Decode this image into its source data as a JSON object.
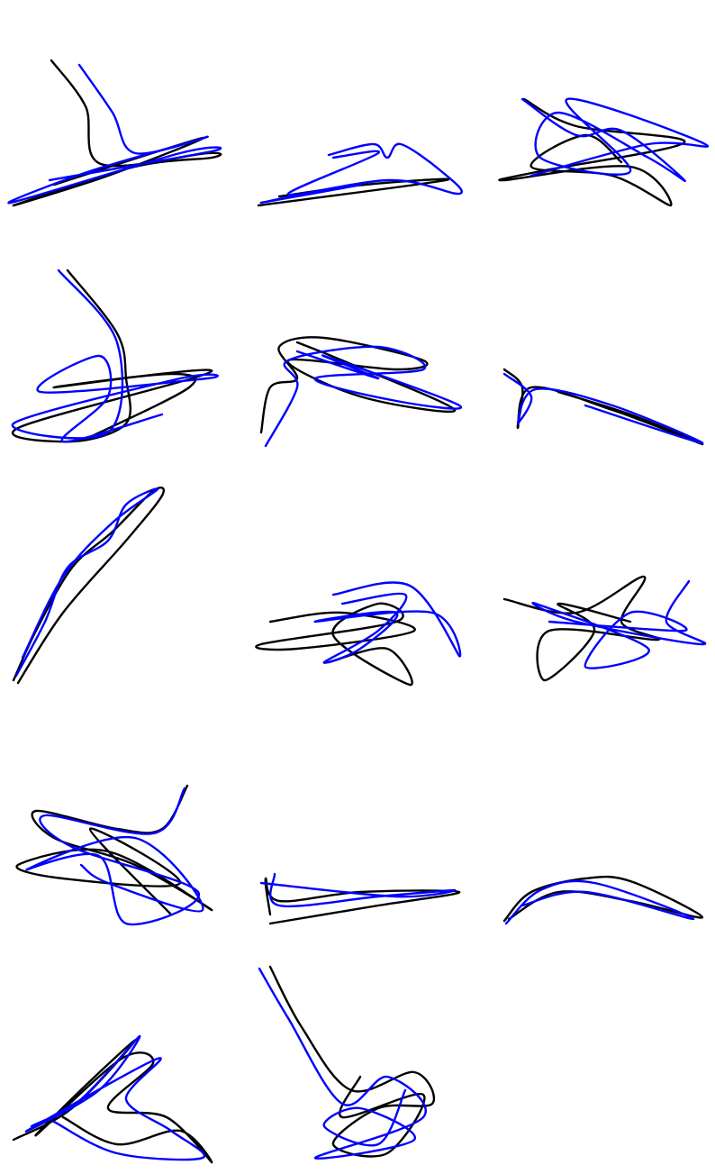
{
  "chart_data": [
    {
      "type": "line",
      "series": [
        {
          "color": "#000000",
          "x": [
            47,
            85,
            102,
            220,
            225,
            140,
            5,
            110,
            215,
            50
          ],
          "values": [
            173,
            122,
            58,
            70,
            65,
            55,
            12,
            45,
            87,
            35
          ]
        },
        {
          "color": "#0000ff",
          "x": [
            78,
            115,
            140,
            220,
            90,
            2,
            190,
            225,
            45
          ],
          "values": [
            168,
            115,
            70,
            88,
            50,
            15,
            70,
            72,
            40
          ]
        }
      ]
    },
    {
      "type": "line",
      "series": [
        {
          "color": "#000000",
          "x": [
            2,
            210,
            120,
            25
          ],
          "values": [
            12,
            40,
            35,
            22
          ]
        },
        {
          "color": "#0000ff",
          "x": [
            80,
            130,
            145,
            160,
            205,
            225,
            145,
            5,
            115,
            35,
            135,
            85
          ],
          "values": [
            68,
            80,
            65,
            80,
            50,
            25,
            40,
            15,
            35,
            25,
            70,
            65
          ]
        }
      ]
    },
    {
      "type": "line",
      "series": [
        {
          "color": "#000000",
          "x": [
            24,
            82,
            202,
            42,
            2,
            142,
            187,
            122,
            32,
            92,
            132
          ],
          "values": [
            130,
            100,
            82,
            50,
            40,
            55,
            12,
            45,
            55,
            90,
            60
          ]
        },
        {
          "color": "#0000ff",
          "x": [
            22,
            82,
            132,
            202,
            162,
            62,
            42,
            142,
            72,
            225,
            162,
            32
          ],
          "values": [
            130,
            90,
            95,
            40,
            65,
            115,
            65,
            50,
            130,
            80,
            80,
            45
          ]
        }
      ]
    },
    {
      "type": "line",
      "series": [
        {
          "color": "#000000",
          "x": [
            65,
            120,
            130,
            130,
            70,
            10,
            225,
            50,
            180,
            200,
            90
          ],
          "values": [
            200,
            130,
            80,
            30,
            10,
            25,
            88,
            70,
            85,
            70,
            15
          ]
        },
        {
          "color": "#0000ff",
          "x": [
            55,
            120,
            110,
            5,
            190,
            220,
            35,
            100,
            110,
            60,
            170
          ],
          "values": [
            200,
            120,
            20,
            30,
            80,
            80,
            65,
            105,
            60,
            10,
            40
          ]
        }
      ]
    },
    {
      "type": "line",
      "series": [
        {
          "color": "#000000",
          "x": [
            5,
            15,
            45,
            25,
            75,
            185,
            155,
            35,
            115,
            220,
            95,
            45
          ],
          "values": [
            20,
            70,
            80,
            115,
            125,
            100,
            90,
            100,
            60,
            45,
            100,
            120
          ]
        },
        {
          "color": "#0000ff",
          "x": [
            10,
            45,
            35,
            135,
            185,
            65,
            155,
            225,
            75,
            135,
            45
          ],
          "values": [
            5,
            70,
            100,
            115,
            90,
            80,
            55,
            50,
            105,
            80,
            110
          ]
        }
      ]
    },
    {
      "type": "line",
      "series": [
        {
          "color": "#000000",
          "x": [
            2,
            22,
            17,
            32,
            122,
            222,
            142,
            62
          ],
          "values": [
            90,
            70,
            25,
            70,
            45,
            7,
            40,
            65
          ]
        },
        {
          "color": "#0000ff",
          "x": [
            2,
            32,
            17,
            37,
            122,
            222,
            92
          ],
          "values": [
            85,
            60,
            30,
            68,
            50,
            8,
            50
          ]
        }
      ]
    },
    {
      "type": "line",
      "series": [
        {
          "color": "#000000",
          "x": [
            10,
            60,
            130,
            170,
            160,
            115,
            70,
            30,
            5
          ],
          "values": [
            7,
            85,
            165,
            215,
            220,
            175,
            135,
            65,
            10
          ]
        },
        {
          "color": "#0000ff",
          "x": [
            8,
            40,
            65,
            110,
            130,
            165,
            115,
            60,
            15
          ],
          "values": [
            15,
            75,
            135,
            165,
            205,
            222,
            185,
            125,
            35
          ]
        }
      ]
    },
    {
      "type": "line",
      "series": [
        {
          "color": "#000000",
          "x": [
            15,
            95,
            175,
            45,
            5,
            155,
            135,
            85,
            170,
            145,
            80
          ],
          "values": [
            75,
            85,
            65,
            45,
            50,
            75,
            95,
            60,
            5,
            45,
            30
          ]
        },
        {
          "color": "#0000ff",
          "x": [
            85,
            170,
            225,
            195,
            65,
            155,
            115,
            75,
            135,
            165,
            95
          ],
          "values": [
            105,
            115,
            37,
            85,
            75,
            85,
            45,
            30,
            65,
            105,
            95
          ]
        }
      ]
    },
    {
      "type": "line",
      "series": [
        {
          "color": "#000000",
          "x": [
            2,
            82,
            157,
            132,
            172,
            52,
            47,
            102,
            62,
            142
          ],
          "values": [
            100,
            85,
            125,
            75,
            55,
            65,
            10,
            65,
            95,
            75
          ]
        },
        {
          "color": "#0000ff",
          "x": [
            207,
            182,
            222,
            82,
            37,
            162,
            92,
            142,
            202,
            52
          ],
          "values": [
            120,
            75,
            50,
            75,
            95,
            45,
            25,
            85,
            65,
            75
          ]
        }
      ]
    },
    {
      "type": "line",
      "series": [
        {
          "color": "#000000",
          "x": [
            198,
            170,
            120,
            30,
            50,
            140,
            225,
            110,
            10,
            60,
            190,
            90,
            180
          ],
          "values": [
            158,
            110,
            110,
            130,
            100,
            70,
            20,
            85,
            70,
            55,
            50,
            110,
            15
          ]
        },
        {
          "color": "#0000ff",
          "x": [
            195,
            160,
            40,
            70,
            210,
            130,
            100,
            20,
            140,
            215,
            110,
            80
          ],
          "values": [
            155,
            105,
            125,
            90,
            40,
            5,
            80,
            65,
            100,
            20,
            50,
            70
          ]
        }
      ]
    },
    {
      "type": "line",
      "series": [
        {
          "color": "#000000",
          "x": [
            15,
            10,
            25,
            115,
            225,
            135,
            15
          ],
          "values": [
            15,
            55,
            30,
            40,
            40,
            25,
            5
          ]
        },
        {
          "color": "#0000ff",
          "x": [
            20,
            25,
            135,
            220,
            155,
            5
          ],
          "values": [
            60,
            25,
            35,
            42,
            35,
            50
          ]
        }
      ]
    },
    {
      "type": "line",
      "series": [
        {
          "color": "#000000",
          "x": [
            2,
            32,
            92,
            142,
            222,
            142,
            62,
            7
          ],
          "values": [
            8,
            40,
            55,
            52,
            12,
            30,
            40,
            10
          ]
        },
        {
          "color": "#0000ff",
          "x": [
            4,
            42,
            102,
            212,
            92,
            22
          ],
          "values": [
            5,
            42,
            50,
            10,
            40,
            25
          ]
        }
      ]
    },
    {
      "type": "line",
      "series": [
        {
          "color": "#000000",
          "x": [
            5,
            70,
            140,
            90,
            30,
            125,
            160,
            110,
            175,
            225,
            190,
            120,
            60
          ],
          "values": [
            30,
            65,
            140,
            95,
            35,
            120,
            115,
            65,
            55,
            5,
            40,
            25,
            55
          ]
        },
        {
          "color": "#0000ff",
          "x": [
            25,
            80,
            145,
            100,
            20,
            165,
            130,
            180,
            215,
            120,
            50
          ],
          "values": [
            45,
            75,
            145,
            85,
            40,
            120,
            75,
            40,
            10,
            15,
            50
          ]
        }
      ]
    },
    {
      "type": "line",
      "series": [
        {
          "color": "#000000",
          "x": [
            15,
            50,
            105,
            175,
            195,
            135,
            85,
            145,
            185,
            95,
            115
          ],
          "values": [
            222,
            155,
            85,
            105,
            70,
            65,
            25,
            15,
            80,
            55,
            100
          ]
        },
        {
          "color": "#0000ff",
          "x": [
            3,
            35,
            95,
            145,
            185,
            65,
            175,
            115,
            75,
            135,
            165
          ],
          "values": [
            220,
            165,
            70,
            100,
            55,
            10,
            30,
            65,
            45,
            25,
            85
          ]
        }
      ]
    }
  ]
}
